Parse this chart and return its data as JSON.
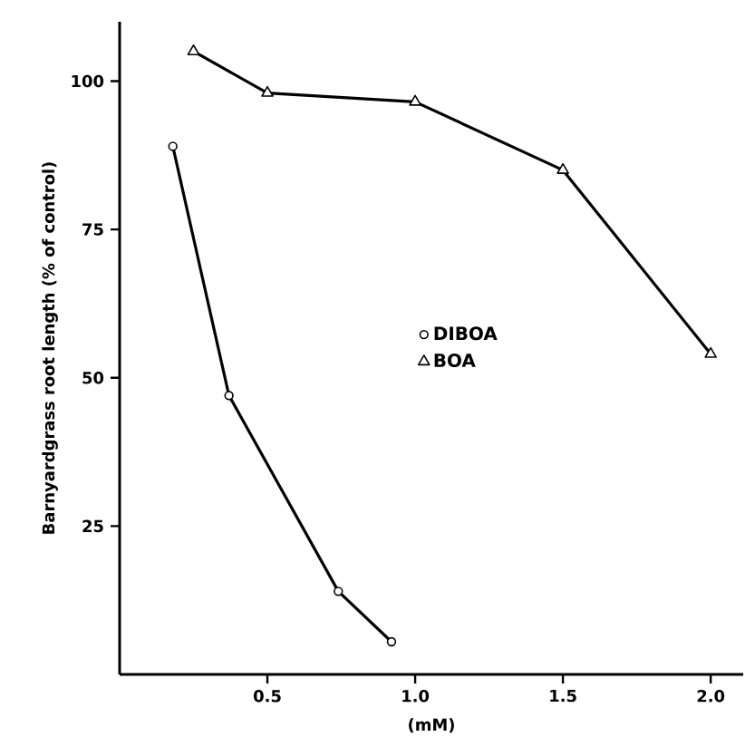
{
  "chart_data": {
    "type": "line",
    "xlabel": "(mM)",
    "ylabel": "Barnyardgrass root length (% of control)",
    "xlim": [
      0,
      2.11
    ],
    "xticks": [
      0.5,
      {
        "value": 1,
        "label": "1.0"
      },
      1.5,
      {
        "value": 2,
        "label": "2.0"
      }
    ],
    "ylim": [
      0,
      110
    ],
    "yticks": [
      25,
      50,
      75,
      100
    ],
    "legend": "right",
    "grid": false,
    "line_style": "solid",
    "series": [
      {
        "name": "DIBOA",
        "color": "#000000",
        "marker": "circle",
        "x": [
          0.18,
          0.37,
          0.74,
          0.92
        ],
        "values": [
          89,
          47,
          14,
          5.5
        ]
      },
      {
        "name": "BOA",
        "color": "#000000",
        "marker": "triangle",
        "x": [
          0.25,
          0.5,
          1.0,
          1.5,
          2.0
        ],
        "values": [
          105,
          98,
          96.5,
          85,
          54
        ]
      }
    ]
  }
}
